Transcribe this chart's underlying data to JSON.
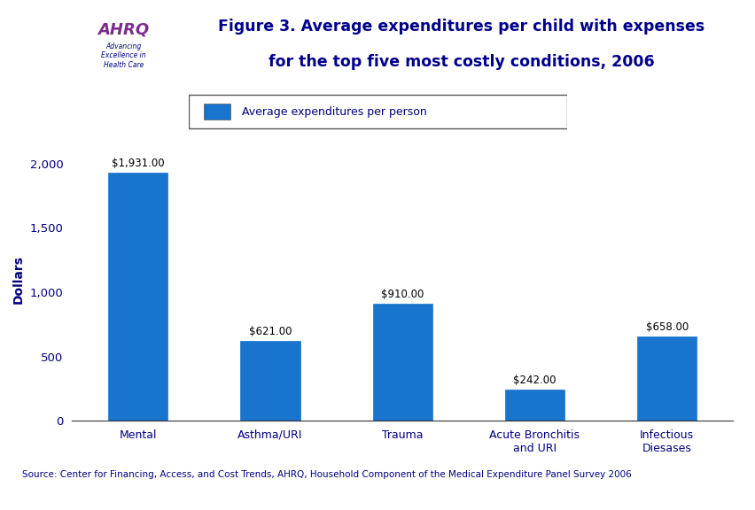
{
  "categories": [
    "Mental",
    "Asthma/URI",
    "Trauma",
    "Acute Bronchitis\nand URI",
    "Infectious\nDiesases"
  ],
  "values": [
    1931,
    621,
    910,
    242,
    658
  ],
  "labels": [
    "$1,931.00",
    "$621.00",
    "$910.00",
    "$242.00",
    "$658.00"
  ],
  "bar_color": "#1874CD",
  "title_line1": "Figure 3. Average expenditures per child with expenses",
  "title_line2": "for the top five most costly conditions, 2006",
  "ylabel": "Dollars",
  "ylim": [
    0,
    2200
  ],
  "yticks": [
    0,
    500,
    1000,
    1500,
    2000
  ],
  "legend_label": "Average expenditures per person",
  "source_text": "Source: Center for Financing, Access, and Cost Trends, AHRQ, Household Component of the Medical Expenditure Panel Survey 2006",
  "bg_color": "#FFFFFF",
  "dark_blue": "#00007F",
  "medium_blue": "#1874CD",
  "title_color": "#00008B",
  "ylabel_color": "#000080",
  "tick_color": "#000080",
  "source_color": "#000080",
  "header_line_color": "#00008B",
  "footer_line_color": "#00008B"
}
